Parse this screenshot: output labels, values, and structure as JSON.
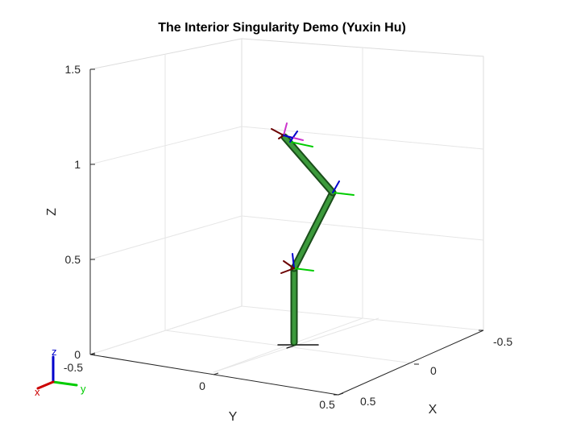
{
  "figure": {
    "title": "The Interior Singularity Demo (Yuxin Hu)"
  },
  "axes": {
    "x": {
      "label": "X",
      "ticks": [
        "-0.5",
        "0",
        "0.5"
      ]
    },
    "y": {
      "label": "Y",
      "ticks": [
        "-0.5",
        "0",
        "0.5"
      ]
    },
    "z": {
      "label": "Z",
      "ticks": [
        "0",
        "0.5",
        "1",
        "1.5"
      ]
    },
    "grid": true
  },
  "triad": {
    "x_label": "x",
    "y_label": "y",
    "z_label": "z"
  },
  "colors": {
    "link": "#2e7d2e",
    "frame_x": "#6b0000",
    "frame_y": "#00cc00",
    "frame_z": "#0000cc",
    "end_effector": "#cc33cc",
    "grid": "#e6e6e6",
    "axis": "#262626"
  }
}
